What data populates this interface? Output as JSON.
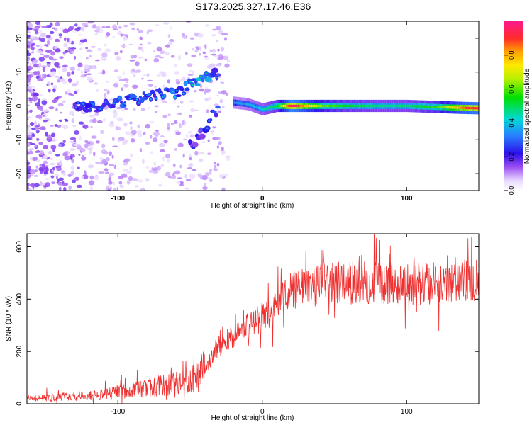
{
  "title": "S173.2025.327.17.46.E36",
  "colorbar": {
    "label": "Normalized spectral amplitude",
    "ticks": [
      "0.0",
      "0.2",
      "0.4",
      "0.6",
      "0.8"
    ],
    "tick_values": [
      0.0,
      0.2,
      0.4,
      0.6,
      0.8
    ],
    "range": [
      0,
      1
    ]
  },
  "chart_data": [
    {
      "type": "heatmap",
      "title": "S173.2025.327.17.46.E36",
      "xlabel": "Height of straight line (km)",
      "ylabel": "Frequency (Hz)",
      "xlim": [
        -163,
        150
      ],
      "ylim": [
        -25,
        25
      ],
      "xticks": [
        -100,
        0,
        100
      ],
      "xtick_labels": [
        "-100",
        "0",
        "100"
      ],
      "yticks": [
        -20,
        -10,
        0,
        10,
        20
      ],
      "ytick_labels": [
        "-20",
        "-10",
        "0",
        "10",
        "20"
      ],
      "description_series": [
        {
          "name": "main-tone",
          "x": [
            -20,
            -10,
            0,
            10,
            20,
            40,
            60,
            80,
            100,
            120,
            140,
            150
          ],
          "y": [
            1,
            0.5,
            -1,
            0,
            0,
            0,
            0,
            0,
            0,
            -0.3,
            -0.6,
            -0.7
          ],
          "amplitude": [
            0.3,
            0.35,
            0.4,
            0.5,
            0.95,
            0.6,
            0.5,
            0.45,
            0.45,
            0.55,
            0.85,
            0.9
          ]
        },
        {
          "name": "rising-arc",
          "x": [
            -130,
            -110,
            -90,
            -75,
            -60,
            -50,
            -40,
            -35,
            -30
          ],
          "y": [
            0,
            0,
            2,
            3,
            4,
            6,
            8,
            9,
            10
          ],
          "amplitude": [
            0.2,
            0.2,
            0.25,
            0.22,
            0.25,
            0.3,
            0.35,
            0.3,
            0.15
          ]
        },
        {
          "name": "lower-branch",
          "x": [
            -50,
            -45,
            -40,
            -35,
            -30
          ],
          "y": [
            -12,
            -10,
            -7,
            -3,
            0
          ],
          "amplitude": [
            0.15,
            0.18,
            0.2,
            0.2,
            0.25
          ]
        }
      ]
    },
    {
      "type": "line",
      "xlabel": "Height of straight line (km)",
      "ylabel": "SNR (10 * v/v)",
      "xlim": [
        -163,
        150
      ],
      "ylim": [
        0,
        650
      ],
      "xticks": [
        -100,
        0,
        100
      ],
      "xtick_labels": [
        "-100",
        "0",
        "100"
      ],
      "yticks": [
        0,
        200,
        400,
        600
      ],
      "ytick_labels": [
        "0",
        "200",
        "400",
        "600"
      ],
      "series": [
        {
          "name": "SNR",
          "color": "#ee3030",
          "x": [
            -163,
            -140,
            -120,
            -100,
            -80,
            -60,
            -45,
            -38,
            -30,
            -20,
            -10,
            0,
            10,
            20,
            30,
            50,
            70,
            90,
            100,
            110,
            130,
            150
          ],
          "y": [
            20,
            25,
            30,
            45,
            60,
            80,
            100,
            150,
            220,
            260,
            300,
            330,
            380,
            430,
            450,
            460,
            465,
            460,
            455,
            460,
            470,
            475
          ]
        }
      ]
    }
  ],
  "colors": {
    "line": "#ee3030",
    "heat_background": "#ffffff"
  }
}
